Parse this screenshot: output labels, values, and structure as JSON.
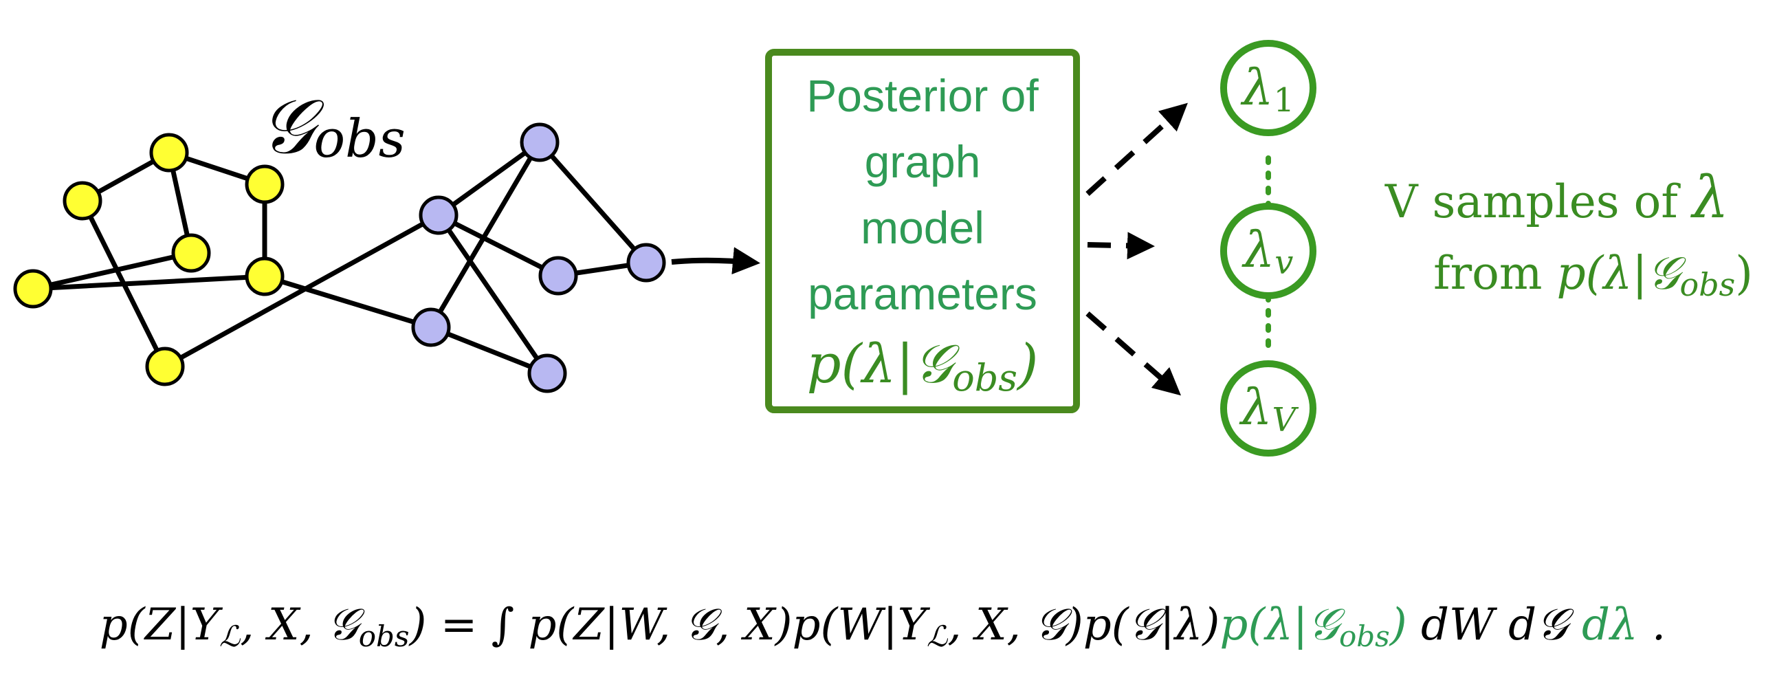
{
  "graph": {
    "label_main": "𝒢",
    "label_sub": "obs"
  },
  "posterior_box": {
    "lines": [
      "Posterior of",
      "graph",
      "model",
      "parameters"
    ],
    "formula_main": "p(λ|𝒢",
    "formula_sub": "obs",
    "formula_close": ")"
  },
  "samples": [
    {
      "main": "λ",
      "sub": "1"
    },
    {
      "main": "λ",
      "sub": "v"
    },
    {
      "main": "λ",
      "sub": "V"
    }
  ],
  "samples_caption": {
    "line1_text": "V samples of ",
    "line1_symbol": "λ",
    "line2_text": "from ",
    "line2_formula": "p(λ|𝒢",
    "line2_sub": "obs",
    "line2_close": ")"
  },
  "equation": {
    "lhs": "p(Z|Y",
    "lhs_sub_L": "ℒ",
    "lhs_rest": ", X, 𝒢",
    "lhs_sub_obs": "obs",
    "lhs_close": ") = ∫",
    "term1": " p(Z|W, 𝒢, X)p(W|Y",
    "term1_sub": "ℒ",
    "term2": ", X, 𝒢)p(𝒢|λ)",
    "term3_green": "p(λ|𝒢",
    "term3_sub": "obs",
    "term3_close": ")",
    "term4": " dW d𝒢 ",
    "term5_green": "dλ",
    "term6": " ."
  },
  "colors": {
    "node_yellow": "#ffff33",
    "node_blue": "#b8b8f2",
    "box_border": "#4a8a1e",
    "accent_green": "#2e9b55"
  }
}
